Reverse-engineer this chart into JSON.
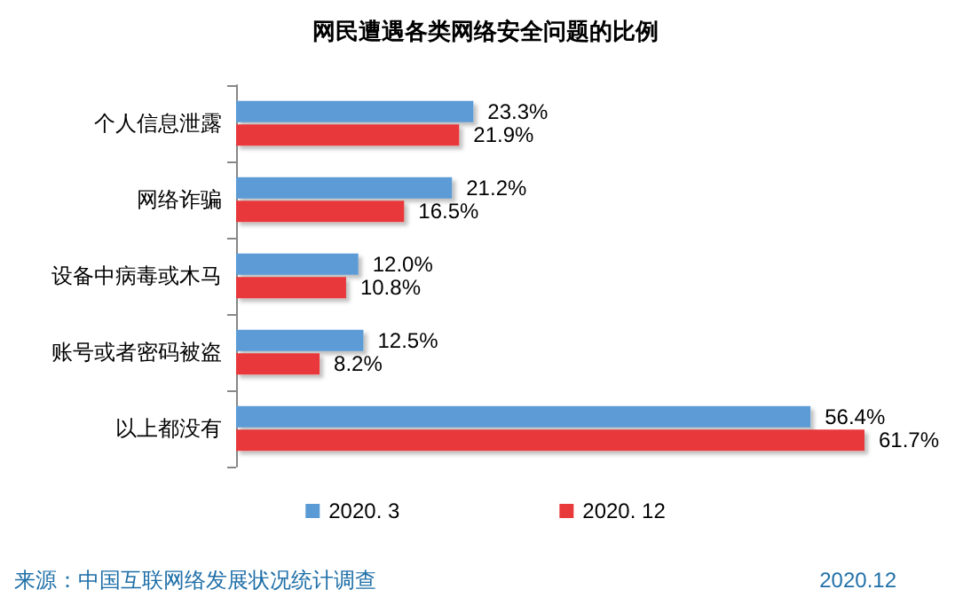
{
  "chart_data": {
    "type": "bar",
    "orientation": "horizontal",
    "title": "网民遭遇各类网络安全问题的比例",
    "categories": [
      "个人信息泄露",
      "网络诈骗",
      "设备中病毒或木马",
      "账号或者密码被盗",
      "以上都没有"
    ],
    "series": [
      {
        "name": "2020. 3",
        "color": "#5b9bd5",
        "values": [
          23.3,
          21.2,
          12.0,
          12.5,
          56.4
        ],
        "value_labels": [
          "23.3%",
          "21.2%",
          "12.0%",
          "12.5%",
          "56.4%"
        ]
      },
      {
        "name": "2020. 12",
        "color": "#e8393b",
        "values": [
          21.9,
          16.5,
          10.8,
          8.2,
          61.7
        ],
        "value_labels": [
          "21.9%",
          "16.5%",
          "10.8%",
          "8.2%",
          "61.7%"
        ]
      }
    ],
    "legend": "bottom",
    "grid": false,
    "annotations": [
      "来源：中国互联网络发展状况统计调查",
      "2020.12"
    ]
  }
}
